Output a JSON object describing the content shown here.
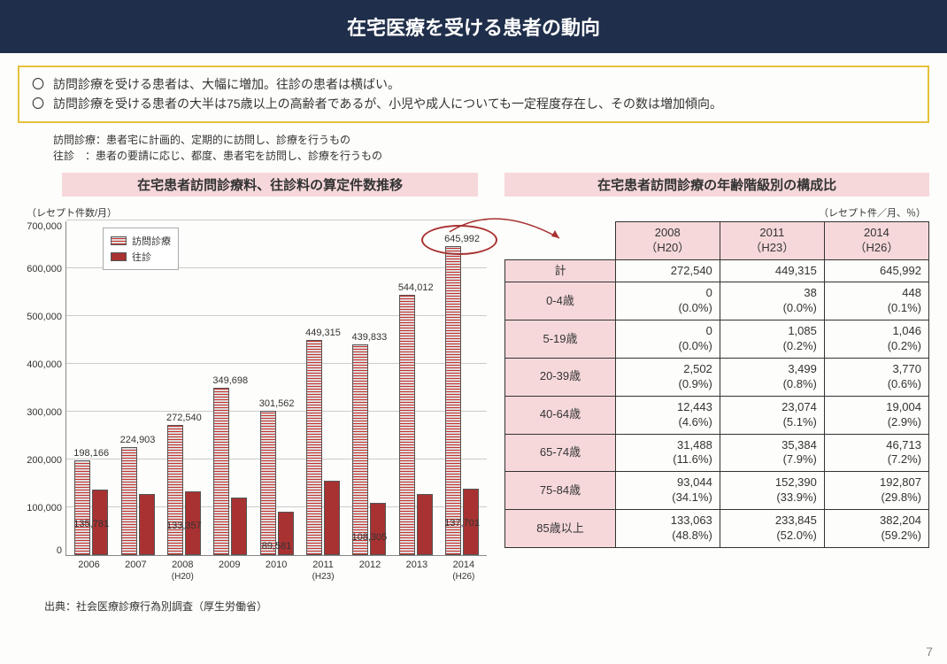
{
  "title": "在宅医療を受ける患者の動向",
  "callout": {
    "line1": "訪問診療を受ける患者は、大幅に増加。往診の患者は横ばい。",
    "line2": "訪問診療を受ける患者の大半は75歳以上の高齢者であるが、小児や成人についても一定程度存在し、その数は増加傾向。"
  },
  "definitions": {
    "line1": "訪問診療：患者宅に計画的、定期的に訪問し、診療を行うもの",
    "line2": "往診　：患者の要請に応じ、都度、患者宅を訪問し、診療を行うもの"
  },
  "chart": {
    "subtitle": "在宅患者訪問診療料、往診料の算定件数推移",
    "y_unit": "（レセプト件数/月）",
    "ymax": 700000,
    "ystep": 100000,
    "legend": {
      "visit": "訪問診療",
      "house": "往診"
    },
    "colors": {
      "visit_pattern": "#c9302c",
      "house": "#a83232",
      "grid": "#cccccc"
    },
    "years": [
      {
        "y": "2006",
        "sub": "",
        "visit": 198166,
        "house": 135781,
        "top": "198,166",
        "bot": "135,781"
      },
      {
        "y": "2007",
        "sub": "",
        "visit": 224903,
        "house": 128000,
        "top": "224,903",
        "bot": ""
      },
      {
        "y": "2008",
        "sub": "(H20)",
        "visit": 272540,
        "house": 133357,
        "top": "272,540",
        "bot": "133,357"
      },
      {
        "y": "2009",
        "sub": "",
        "visit": 349698,
        "house": 120000,
        "top": "349,698",
        "bot": ""
      },
      {
        "y": "2010",
        "sub": "",
        "visit": 301562,
        "house": 89581,
        "top": "301,562",
        "bot": "89,581"
      },
      {
        "y": "2011",
        "sub": "(H23)",
        "visit": 449315,
        "house": 155000,
        "top": "449,315",
        "bot": ""
      },
      {
        "y": "2012",
        "sub": "",
        "visit": 439833,
        "house": 108305,
        "top": "439,833",
        "bot": "108,305"
      },
      {
        "y": "2013",
        "sub": "",
        "visit": 544012,
        "house": 128000,
        "top": "544,012",
        "bot": ""
      },
      {
        "y": "2014",
        "sub": "(H26)",
        "visit": 645992,
        "house": 137701,
        "top": "645,992",
        "bot": "137,701"
      }
    ],
    "highlight_index": 8,
    "source": "出典：社会医療診療行為別調査（厚生労働省）"
  },
  "table": {
    "subtitle": "在宅患者訪問診療の年齢階級別の構成比",
    "unit": "（レセプト件／月、％）",
    "cols": [
      {
        "y": "2008",
        "sub": "（H20）"
      },
      {
        "y": "2011",
        "sub": "（H23）"
      },
      {
        "y": "2014",
        "sub": "（H26）"
      }
    ],
    "total_label": "計",
    "totals": [
      "272,540",
      "449,315",
      "645,992"
    ],
    "rows": [
      {
        "label": "0-4歳",
        "cells": [
          {
            "n": "0",
            "p": "(0.0%)"
          },
          {
            "n": "38",
            "p": "(0.0%)"
          },
          {
            "n": "448",
            "p": "(0.1%)"
          }
        ]
      },
      {
        "label": "5-19歳",
        "cells": [
          {
            "n": "0",
            "p": "(0.0%)"
          },
          {
            "n": "1,085",
            "p": "(0.2%)"
          },
          {
            "n": "1,046",
            "p": "(0.2%)"
          }
        ]
      },
      {
        "label": "20-39歳",
        "cells": [
          {
            "n": "2,502",
            "p": "(0.9%)"
          },
          {
            "n": "3,499",
            "p": "(0.8%)"
          },
          {
            "n": "3,770",
            "p": "(0.6%)"
          }
        ]
      },
      {
        "label": "40-64歳",
        "cells": [
          {
            "n": "12,443",
            "p": "(4.6%)"
          },
          {
            "n": "23,074",
            "p": "(5.1%)"
          },
          {
            "n": "19,004",
            "p": "(2.9%)"
          }
        ]
      },
      {
        "label": "65-74歳",
        "cells": [
          {
            "n": "31,488",
            "p": "(11.6%)"
          },
          {
            "n": "35,384",
            "p": "(7.9%)"
          },
          {
            "n": "46,713",
            "p": "(7.2%)"
          }
        ]
      },
      {
        "label": "75-84歳",
        "cells": [
          {
            "n": "93,044",
            "p": "(34.1%)"
          },
          {
            "n": "152,390",
            "p": "(33.9%)"
          },
          {
            "n": "192,807",
            "p": "(29.8%)"
          }
        ]
      },
      {
        "label": "85歳以上",
        "cells": [
          {
            "n": "133,063",
            "p": "(48.8%)"
          },
          {
            "n": "233,845",
            "p": "(52.0%)"
          },
          {
            "n": "382,204",
            "p": "(59.2%)"
          }
        ]
      }
    ]
  },
  "page_number": "7"
}
